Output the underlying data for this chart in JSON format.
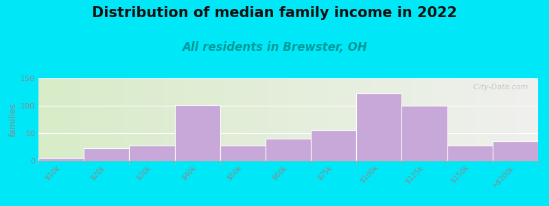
{
  "title": "Distribution of median family income in 2022",
  "subtitle": "All residents in Brewster, OH",
  "ylabel": "families",
  "categories": [
    "$10k",
    "$20k",
    "$30k",
    "$40k",
    "$50k",
    "$60k",
    "$75k",
    "$100k",
    "$125k",
    "$150k",
    ">$200k"
  ],
  "values": [
    5,
    23,
    28,
    101,
    28,
    40,
    55,
    123,
    100,
    28,
    35
  ],
  "bar_color": "#c8a8d8",
  "ylim": [
    0,
    150
  ],
  "yticks": [
    0,
    50,
    100,
    150
  ],
  "background_outer": "#00e8f8",
  "background_inner_left": "#d8ecc8",
  "background_inner_right": "#f0f0ee",
  "title_fontsize": 15,
  "subtitle_fontsize": 12,
  "subtitle_color": "#009999",
  "ylabel_fontsize": 9,
  "tick_label_color": "#888888",
  "watermark_text": "  City-Data.com",
  "watermark_color": "#c0c0c0"
}
